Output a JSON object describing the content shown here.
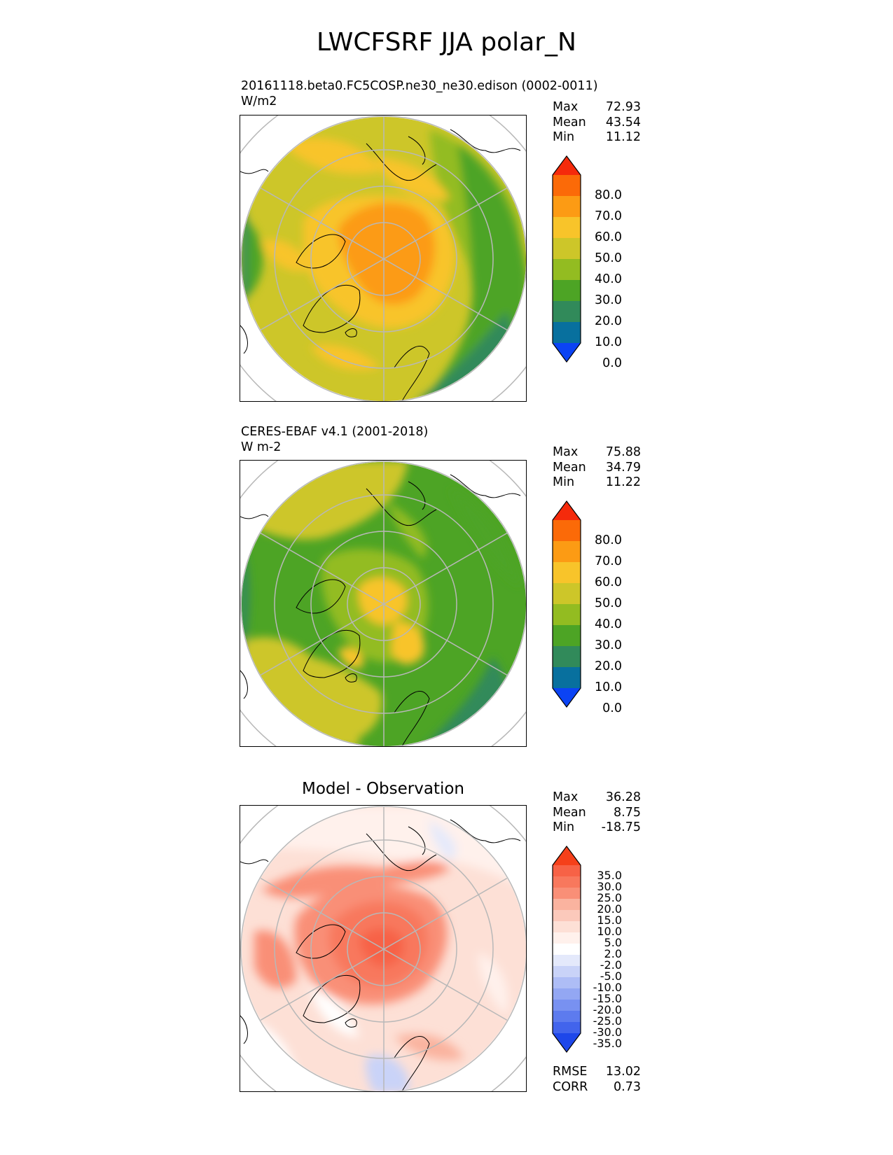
{
  "figure_title": "LWCFSRF JJA polar_N",
  "panels": [
    {
      "title_line1": "20161118.beta0.FC5COSP.ne30_ne30.edison (0002-0011)",
      "title_line2": "W/m2",
      "stats": {
        "max_label": "Max",
        "max": "72.93",
        "mean_label": "Mean",
        "mean": "43.54",
        "min_label": "Min",
        "min": "11.12"
      }
    },
    {
      "title_line1": "CERES-EBAF v4.1 (2001-2018)",
      "title_line2": "W m-2",
      "stats": {
        "max_label": "Max",
        "max": "75.88",
        "mean_label": "Mean",
        "mean": "34.79",
        "min_label": "Min",
        "min": "11.22"
      }
    },
    {
      "title": "Model - Observation",
      "stats": {
        "max_label": "Max",
        "max": "36.28",
        "mean_label": "Mean",
        "mean": "8.75",
        "min_label": "Min",
        "min": "-18.75"
      },
      "metrics": {
        "rmse_label": "RMSE",
        "rmse": "13.02",
        "corr_label": "CORR",
        "corr": "0.73"
      }
    }
  ],
  "chart_data": [
    {
      "type": "heatmap",
      "projection": "north polar stereographic",
      "title": "20161118.beta0.FC5COSP.ne30_ne30.edison (0002-0011)",
      "units": "W/m2",
      "colorbar_ticks": [
        "80.0",
        "70.0",
        "60.0",
        "50.0",
        "40.0",
        "30.0",
        "20.0",
        "10.0",
        "0.0"
      ],
      "colorbar_colors": [
        "#f52a0b",
        "#fb6a08",
        "#fc9b14",
        "#f8c42a",
        "#cdc629",
        "#93bc21",
        "#4da425",
        "#318a5a",
        "#08709e",
        "#0b43f4"
      ],
      "max": 72.93,
      "mean": 43.54,
      "min": 11.12
    },
    {
      "type": "heatmap",
      "projection": "north polar stereographic",
      "title": "CERES-EBAF v4.1 (2001-2018)",
      "units": "W m-2",
      "colorbar_ticks": [
        "80.0",
        "70.0",
        "60.0",
        "50.0",
        "40.0",
        "30.0",
        "20.0",
        "10.0",
        "0.0"
      ],
      "colorbar_colors": [
        "#f52a0b",
        "#fb6a08",
        "#fc9b14",
        "#f8c42a",
        "#cdc629",
        "#93bc21",
        "#4da425",
        "#318a5a",
        "#08709e",
        "#0b43f4"
      ],
      "max": 75.88,
      "mean": 34.79,
      "min": 11.22
    },
    {
      "type": "heatmap",
      "projection": "north polar stereographic",
      "title": "Model - Observation",
      "colorbar_ticks": [
        "35.0",
        "30.0",
        "25.0",
        "20.0",
        "15.0",
        "10.0",
        "5.0",
        "2.0",
        "-2.0",
        "-5.0",
        "-10.0",
        "-15.0",
        "-20.0",
        "-25.0",
        "-30.0",
        "-35.0"
      ],
      "colorbar_colors": [
        "#f5401a",
        "#f76246",
        "#f8785d",
        "#f98f77",
        "#fab39f",
        "#fbc9bb",
        "#fde0d6",
        "#fff1ec",
        "#ffffff",
        "#e4e9fb",
        "#c9d3f8",
        "#aebdf6",
        "#93a7f3",
        "#7891f1",
        "#5d7bee",
        "#4264ec",
        "#1e47ea"
      ],
      "max": 36.28,
      "mean": 8.75,
      "min": -18.75,
      "rmse": 13.02,
      "corr": 0.73
    }
  ]
}
